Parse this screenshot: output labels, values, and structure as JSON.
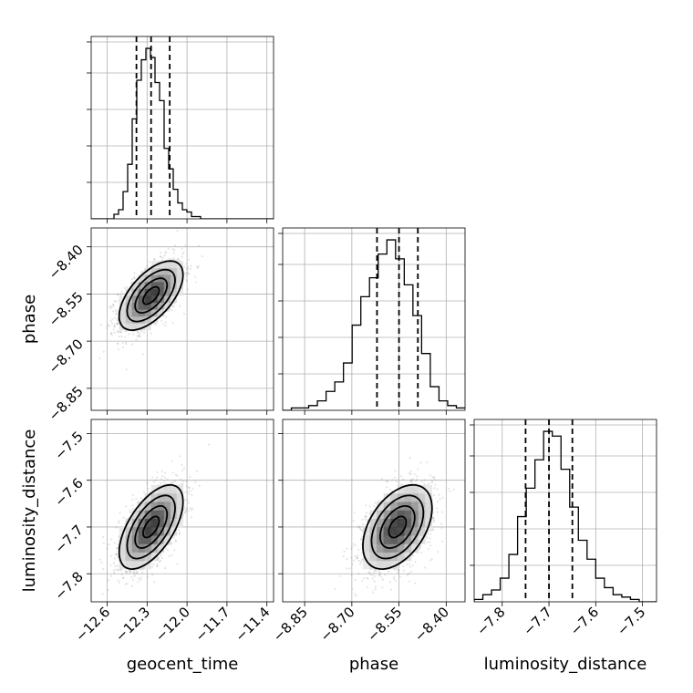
{
  "chart_data": {
    "type": "corner",
    "parameters": [
      {
        "key": "geocent_time",
        "label": "geocent_time",
        "range": [
          -12.72,
          -11.35
        ],
        "ticks": [
          -12.6,
          -12.3,
          -12.0,
          -11.7,
          -11.4
        ],
        "tick_labels": [
          "−12.6",
          "−12.3",
          "−12.0",
          "−11.7",
          "−11.4"
        ],
        "quantiles": [
          -12.38,
          -12.27,
          -12.13
        ],
        "mean": -12.27,
        "sd": 0.12
      },
      {
        "key": "phase",
        "label": "phase",
        "range": [
          -8.92,
          -8.34
        ],
        "ticks": [
          -8.85,
          -8.7,
          -8.55,
          -8.4
        ],
        "tick_labels": [
          "−8.85",
          "−8.70",
          "−8.55",
          "−8.40"
        ],
        "quantiles": [
          -8.62,
          -8.55,
          -8.49
        ],
        "mean": -8.555,
        "sd": 0.055
      },
      {
        "key": "luminosity_distance",
        "label": "luminosity_distance",
        "range": [
          -7.86,
          -7.47
        ],
        "ticks": [
          -7.8,
          -7.7,
          -7.6,
          -7.5
        ],
        "tick_labels": [
          "−7.8",
          "−7.7",
          "−7.6",
          "−7.5"
        ],
        "quantiles": [
          -7.75,
          -7.7,
          -7.65
        ],
        "mean": -7.7,
        "sd": 0.045
      }
    ],
    "diagonal_histograms": [
      {
        "parameter": "geocent_time",
        "bins": [
          -12.72,
          -12.69,
          -12.65,
          -12.62,
          -12.58,
          -12.55,
          -12.51,
          -12.48,
          -12.44,
          -12.41,
          -12.37,
          -12.34,
          -12.3,
          -12.27,
          -12.23,
          -12.2,
          -12.16,
          -12.13,
          -12.1,
          -12.06,
          -12.03,
          -11.99,
          -11.96,
          -11.92,
          -11.89,
          -11.85,
          -11.82,
          -11.78,
          -11.75,
          -11.71,
          -11.68,
          -11.64,
          -11.61,
          -11.57,
          -11.54,
          -11.5,
          -11.47,
          -11.43,
          -11.4,
          -11.36,
          -11.35
        ],
        "counts": [
          0,
          0,
          0,
          0,
          0,
          2,
          4,
          12,
          24,
          44,
          61,
          70,
          75,
          71,
          60,
          52,
          31,
          22,
          13,
          7,
          4,
          3,
          1,
          1,
          0,
          0,
          0,
          0,
          0,
          0,
          0,
          0,
          0,
          0,
          0,
          0,
          0,
          0,
          0,
          0
        ]
      },
      {
        "parameter": "phase",
        "counts": [
          0,
          1,
          1,
          2,
          4,
          8,
          12,
          20,
          36,
          48,
          56,
          66,
          72,
          64,
          53,
          40,
          24,
          10,
          4,
          2,
          1
        ]
      },
      {
        "parameter": "luminosity_distance",
        "counts": [
          1,
          3,
          5,
          10,
          20,
          36,
          48,
          60,
          72,
          70,
          56,
          40,
          26,
          18,
          10,
          6,
          3,
          2,
          1,
          0,
          0
        ]
      }
    ],
    "correlations": {
      "geocent_time-phase": 0.6,
      "geocent_time-luminosity_distance": 0.6,
      "phase-luminosity_distance": 0.45
    },
    "contour_levels_sigma": [
      0.5,
      1.0,
      1.5,
      2.0
    ],
    "grid": true,
    "legend": "none"
  }
}
